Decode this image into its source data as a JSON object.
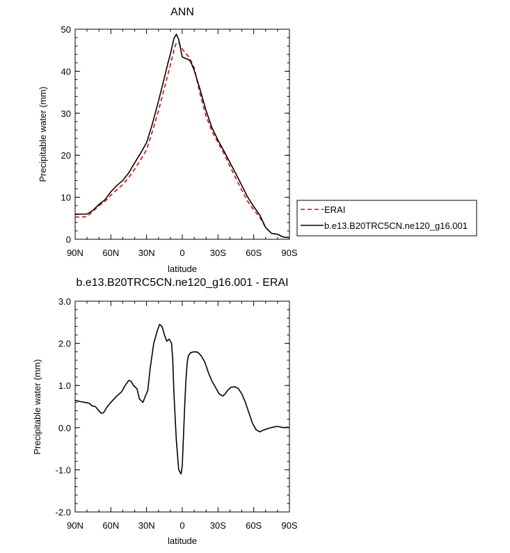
{
  "chart_data": [
    {
      "type": "line",
      "title": "ANN",
      "xlabel": "latitude",
      "ylabel": "Precipitable water (mm)",
      "xlim": [
        90,
        -90
      ],
      "ylim": [
        0,
        50
      ],
      "x_ticks": [
        90,
        60,
        30,
        0,
        -30,
        -60,
        -90
      ],
      "x_tick_labels": [
        "90N",
        "60N",
        "30N",
        "0",
        "30S",
        "60S",
        "90S"
      ],
      "y_ticks": [
        0,
        10,
        20,
        30,
        40,
        50
      ],
      "y_tick_labels": [
        "0",
        "10",
        "20",
        "30",
        "40",
        "50"
      ],
      "grid": false,
      "legend_position": "right",
      "series": [
        {
          "name": "ERAI",
          "color": "#dd0000",
          "dash": "dashed",
          "x": [
            90,
            84,
            80,
            75,
            70,
            65,
            60,
            55,
            50,
            45,
            40,
            35,
            30,
            25,
            20,
            15,
            10,
            7,
            5,
            3,
            0,
            -3,
            -5,
            -8,
            -10,
            -15,
            -20,
            -25,
            -30,
            -35,
            -40,
            -45,
            -50,
            -55,
            -60,
            -65,
            -70,
            -75,
            -80,
            -85,
            -90
          ],
          "values": [
            5.3,
            5.3,
            5.4,
            6.7,
            8.0,
            9.0,
            10.5,
            11.8,
            13.0,
            14.7,
            16.7,
            18.9,
            21.3,
            25.8,
            30.6,
            36.0,
            41.5,
            45.0,
            46.8,
            46.9,
            45.3,
            44.2,
            43.6,
            42.1,
            40.8,
            34.5,
            29.3,
            25.7,
            23.0,
            20.4,
            17.4,
            14.5,
            11.7,
            9.0,
            7.0,
            5.3,
            2.8,
            1.4,
            1.2,
            0.5,
            0.4
          ]
        },
        {
          "name": "b.e13.B20TRC5CN.ne120_g16.001",
          "color": "#000000",
          "dash": "solid",
          "x": [
            90,
            85,
            80,
            75,
            70,
            65,
            60,
            55,
            50,
            45,
            40,
            35,
            30,
            25,
            20,
            15,
            12,
            10,
            7,
            5,
            3,
            0,
            -3,
            -5,
            -7,
            -10,
            -15,
            -20,
            -25,
            -30,
            -35,
            -40,
            -45,
            -50,
            -55,
            -60,
            -65,
            -70,
            -75,
            -80,
            -85,
            -90
          ],
          "values": [
            5.9,
            6.0,
            6.0,
            6.9,
            8.3,
            9.4,
            11.3,
            12.8,
            14.0,
            15.8,
            18.2,
            20.5,
            23.0,
            27.6,
            32.9,
            38.5,
            42.0,
            44.1,
            47.8,
            48.8,
            47.5,
            43.4,
            43.0,
            42.8,
            42.3,
            40.2,
            35.6,
            30.6,
            26.5,
            23.6,
            21.0,
            18.3,
            15.6,
            12.8,
            10.0,
            7.8,
            5.8,
            2.8,
            1.4,
            1.2,
            0.5,
            0.4
          ]
        }
      ]
    },
    {
      "type": "line",
      "title": "b.e13.B20TRC5CN.ne120_g16.001 - ERAI",
      "xlabel": "latitude",
      "ylabel": "Precipitable water (mm)",
      "xlim": [
        90,
        -90
      ],
      "ylim": [
        -2.0,
        3.0
      ],
      "x_ticks": [
        90,
        60,
        30,
        0,
        -30,
        -60,
        -90
      ],
      "x_tick_labels": [
        "90N",
        "60N",
        "30N",
        "0",
        "30S",
        "60S",
        "90S"
      ],
      "y_ticks": [
        -2.0,
        -1.0,
        0.0,
        1.0,
        2.0,
        3.0
      ],
      "y_tick_labels": [
        "-2.0",
        "-1.0",
        "0.0",
        "1.0",
        "2.0",
        "3.0"
      ],
      "grid": false,
      "series": [
        {
          "color": "#000000",
          "dash": "solid",
          "x": [
            90,
            86,
            82,
            78,
            76,
            73,
            70,
            68,
            66,
            63,
            60,
            55,
            51,
            48,
            45,
            43,
            41,
            38,
            36,
            33,
            31,
            29,
            27,
            24,
            21,
            19,
            17,
            15,
            13,
            11,
            9,
            8,
            7,
            5,
            3,
            1,
            0,
            -1,
            -2,
            -3,
            -4,
            -5,
            -7,
            -10,
            -13,
            -16,
            -19,
            -22,
            -25,
            -28,
            -31,
            -34,
            -36,
            -38,
            -41,
            -44,
            -47,
            -50,
            -53,
            -56,
            -59,
            -62,
            -65,
            -68,
            -72,
            -76,
            -80,
            -85,
            -88,
            -90
          ],
          "values": [
            0.65,
            0.62,
            0.6,
            0.58,
            0.52,
            0.5,
            0.4,
            0.34,
            0.36,
            0.5,
            0.6,
            0.75,
            0.85,
            1.0,
            1.12,
            1.1,
            1.0,
            0.92,
            0.68,
            0.6,
            0.75,
            0.88,
            1.4,
            2.0,
            2.3,
            2.45,
            2.4,
            2.2,
            2.05,
            2.1,
            2.0,
            1.6,
            0.8,
            -0.3,
            -1.0,
            -1.1,
            -0.9,
            -0.2,
            0.5,
            1.1,
            1.5,
            1.7,
            1.78,
            1.8,
            1.79,
            1.7,
            1.55,
            1.3,
            1.1,
            0.95,
            0.8,
            0.75,
            0.8,
            0.88,
            0.96,
            0.97,
            0.93,
            0.8,
            0.6,
            0.35,
            0.1,
            -0.05,
            -0.1,
            -0.06,
            -0.02,
            0.01,
            0.03,
            0.0,
            0.01,
            0.0
          ]
        }
      ]
    }
  ]
}
